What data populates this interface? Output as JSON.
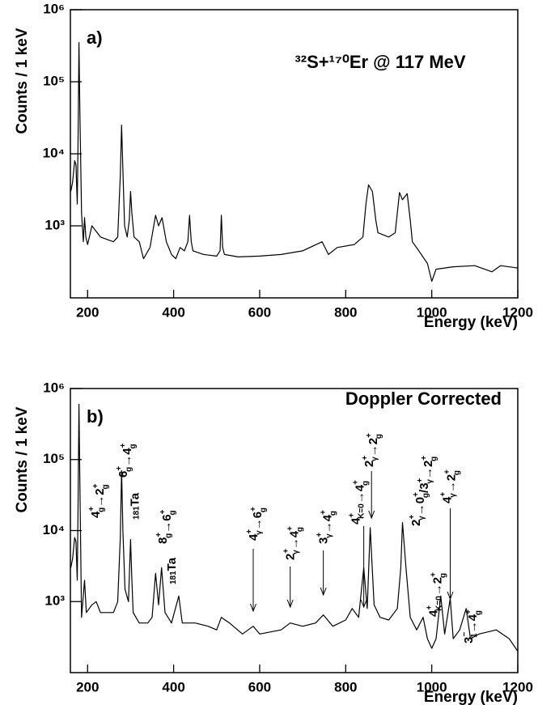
{
  "chart_data": [
    {
      "type": "line",
      "panel_label": "a)",
      "title": "³²S+¹⁷⁰Er @ 117 MeV",
      "xlabel": "Energy (keV)",
      "ylabel": "Counts / 1 keV",
      "log_y": true,
      "color": "#000000",
      "xlim": [
        160,
        1200
      ],
      "ylim": [
        100,
        1000000
      ],
      "xticks": [
        200,
        400,
        600,
        800,
        1000,
        1200
      ],
      "yticks": [
        {
          "value": 1000,
          "label": "10³"
        },
        {
          "value": 10000,
          "label": "10⁴"
        },
        {
          "value": 100000,
          "label": "10⁵"
        },
        {
          "value": 1000000,
          "label": "10⁶"
        }
      ],
      "x": [
        161,
        165,
        170,
        173,
        176,
        178,
        180,
        182,
        186,
        190,
        193,
        196,
        200,
        210,
        230,
        260,
        270,
        276,
        279,
        282,
        286,
        292,
        297,
        300,
        303,
        308,
        320,
        330,
        345,
        358,
        365,
        373,
        383,
        395,
        405,
        415,
        425,
        433,
        437,
        441,
        445,
        470,
        500,
        508,
        511,
        514,
        518,
        550,
        600,
        650,
        700,
        745,
        760,
        780,
        820,
        840,
        847,
        853,
        862,
        870,
        875,
        900,
        915,
        925,
        932,
        943,
        950,
        955,
        970,
        990,
        1000,
        1010,
        1050,
        1100,
        1140,
        1160,
        1200
      ],
      "values": [
        3000,
        4000,
        8000,
        7000,
        2000,
        20000,
        350000,
        40000,
        1500,
        600,
        1300,
        700,
        550,
        1000,
        700,
        600,
        700,
        5000,
        25000,
        6000,
        1000,
        700,
        1200,
        3000,
        1500,
        700,
        600,
        350,
        500,
        1400,
        1000,
        1300,
        600,
        400,
        350,
        500,
        450,
        600,
        1400,
        600,
        450,
        400,
        380,
        450,
        1400,
        500,
        400,
        370,
        380,
        400,
        450,
        600,
        400,
        500,
        550,
        700,
        2000,
        3700,
        3000,
        1200,
        800,
        700,
        800,
        2900,
        2300,
        2800,
        1200,
        600,
        450,
        300,
        170,
        250,
        270,
        280,
        230,
        280,
        260
      ]
    },
    {
      "type": "line",
      "panel_label": "b)",
      "title": "Doppler Corrected",
      "xlabel": "Energy (keV)",
      "ylabel": "Counts / 1 keV",
      "log_y": true,
      "color": "#000000",
      "xlim": [
        160,
        1200
      ],
      "ylim": [
        100,
        1000000
      ],
      "xticks": [
        200,
        400,
        600,
        800,
        1000,
        1200
      ],
      "yticks": [
        {
          "value": 1000,
          "label": "10³"
        },
        {
          "value": 10000,
          "label": "10⁴"
        },
        {
          "value": 100000,
          "label": "10⁵"
        },
        {
          "value": 1000000,
          "label": "10⁶"
        }
      ],
      "x": [
        161,
        165,
        170,
        173,
        176,
        178,
        180,
        182,
        186,
        193,
        197,
        210,
        220,
        230,
        260,
        270,
        276,
        279,
        282,
        287,
        295,
        300,
        303,
        306,
        320,
        340,
        350,
        358,
        365,
        372,
        380,
        395,
        412,
        420,
        450,
        480,
        500,
        511,
        530,
        560,
        585,
        600,
        650,
        671,
        700,
        730,
        748,
        770,
        800,
        815,
        830,
        842,
        850,
        857,
        866,
        880,
        900,
        920,
        928,
        932,
        940,
        950,
        965,
        980,
        990,
        1000,
        1010,
        1021,
        1030,
        1043,
        1050,
        1065,
        1080,
        1090,
        1110,
        1150,
        1180,
        1200
      ],
      "values": [
        3000,
        4000,
        8000,
        7000,
        2000,
        30000,
        600000,
        50000,
        600,
        2000,
        700,
        900,
        1000,
        700,
        700,
        1000,
        8000,
        70000,
        10000,
        1500,
        1000,
        7500,
        2000,
        700,
        500,
        500,
        600,
        2500,
        900,
        3000,
        700,
        500,
        1200,
        500,
        500,
        450,
        400,
        600,
        500,
        350,
        450,
        350,
        400,
        500,
        450,
        500,
        650,
        450,
        550,
        800,
        600,
        3000,
        800,
        11000,
        900,
        600,
        550,
        800,
        3000,
        13000,
        3000,
        600,
        400,
        600,
        300,
        220,
        300,
        1200,
        350,
        1100,
        300,
        400,
        800,
        300,
        350,
        400,
        300,
        200
      ],
      "annotations": [
        {
          "x": 222,
          "tokens": [
            {
              "t": "4"
            },
            {
              "sup": "+",
              "sub": "g"
            },
            {
              "t": "→2"
            },
            {
              "sup": "+",
              "sub": "g"
            }
          ]
        },
        {
          "x": 282,
          "tokens": [
            {
              "t": "6"
            },
            {
              "sup": "+",
              "sub": "g"
            },
            {
              "t": "→4"
            },
            {
              "sup": "+",
              "sub": "g"
            }
          ]
        },
        {
          "x": 300,
          "tokens": [
            {
              "sup": "181"
            },
            {
              "t": "Ta"
            }
          ]
        },
        {
          "x": 382,
          "tokens": [
            {
              "t": "8"
            },
            {
              "sup": "+",
              "sub": "g"
            },
            {
              "t": "→6"
            },
            {
              "sup": "+",
              "sub": "g"
            }
          ]
        },
        {
          "x": 414,
          "tokens": [
            {
              "sup": "181"
            },
            {
              "t": "Ta"
            }
          ]
        },
        {
          "x": 585,
          "tokens": [
            {
              "t": "4"
            },
            {
              "sup": "+",
              "sub": "γ"
            },
            {
              "t": "→6"
            },
            {
              "sup": "+",
              "sub": "g"
            }
          ]
        },
        {
          "x": 671,
          "tokens": [
            {
              "t": "2"
            },
            {
              "sup": "+",
              "sub": "γ"
            },
            {
              "t": "→4"
            },
            {
              "sup": "+",
              "sub": "g"
            }
          ]
        },
        {
          "x": 748,
          "tokens": [
            {
              "t": "3"
            },
            {
              "sup": "+",
              "sub": "γ"
            },
            {
              "t": "→4"
            },
            {
              "sup": "+",
              "sub": "g"
            }
          ]
        },
        {
          "x": 842,
          "tokens": [
            {
              "t": "4"
            },
            {
              "sup": "+",
              "sub": "K=0"
            },
            {
              "t": "→4"
            },
            {
              "sup": "+",
              "sub": "g"
            }
          ]
        },
        {
          "x": 860,
          "tokens": [
            {
              "t": "2"
            },
            {
              "sup": "+",
              "sub": "γ"
            },
            {
              "t": "→2"
            },
            {
              "sup": "+",
              "sub": "g"
            }
          ]
        },
        {
          "x": 942,
          "tokens": [
            {
              "t": "2"
            },
            {
              "sup": "+",
              "sub": "γ"
            },
            {
              "t": "→0"
            },
            {
              "sup": "+",
              "sub": "g"
            },
            {
              "t": "/3"
            },
            {
              "sup": "+",
              "sub": "γ"
            },
            {
              "t": "→2"
            },
            {
              "sup": "+",
              "sub": "g"
            }
          ]
        },
        {
          "x": 1015,
          "tokens": [
            {
              "t": "4"
            },
            {
              "sup": "+",
              "sub": "K=0"
            },
            {
              "t": "→2"
            },
            {
              "sup": "+",
              "sub": "g"
            }
          ]
        },
        {
          "x": 1043,
          "tokens": [
            {
              "t": "4"
            },
            {
              "sup": "+",
              "sub": "γ"
            },
            {
              "t": "→2"
            },
            {
              "sup": "+",
              "sub": "g"
            }
          ]
        },
        {
          "x": 1087,
          "tokens": [
            {
              "t": "3"
            },
            {
              "sup": "−",
              "sub": "1"
            },
            {
              "t": "→4"
            },
            {
              "sup": "+",
              "sub": "g"
            }
          ]
        }
      ]
    }
  ]
}
